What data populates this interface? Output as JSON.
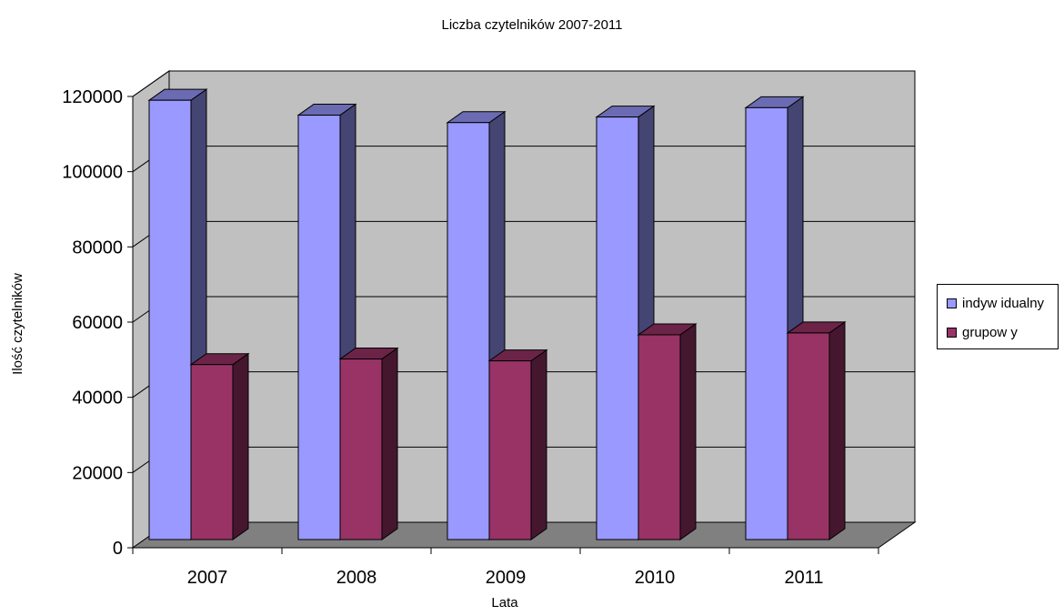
{
  "chart_data": {
    "type": "bar",
    "title": "Liczba czytelników 2007-2011",
    "xlabel": "Lata",
    "ylabel": "Ilość czytelników",
    "categories": [
      "2007",
      "2008",
      "2009",
      "2010",
      "2011"
    ],
    "series": [
      {
        "name": "indyw idualny",
        "values": [
          118000,
          114000,
          112000,
          113500,
          116000
        ],
        "color": "#9999ff"
      },
      {
        "name": "grupow y",
        "values": [
          47000,
          48500,
          48000,
          55000,
          55500
        ],
        "color": "#993366"
      }
    ],
    "ylim": [
      0,
      120000
    ],
    "yticks": [
      "0",
      "20000",
      "40000",
      "60000",
      "80000",
      "100000",
      "120000"
    ],
    "grid": true,
    "legend": "right"
  }
}
